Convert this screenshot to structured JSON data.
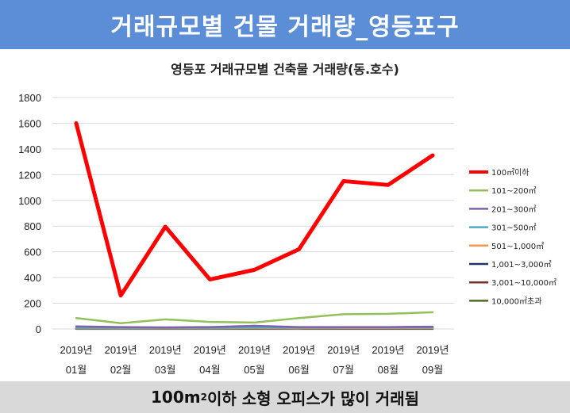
{
  "banner": {
    "title": "거래규모별 건물 거래량_영등포구"
  },
  "footer": {
    "prefix": "100m",
    "superscript": "2",
    "suffix": " 이하 소형 오피스가 많이 거래됨"
  },
  "chart_data": {
    "type": "line",
    "title": "영등포 거래규모별 건축물 거래량(동.호수)",
    "categories": [
      [
        "2019년",
        "01월"
      ],
      [
        "2019년",
        "02월"
      ],
      [
        "2019년",
        "03월"
      ],
      [
        "2019년",
        "04월"
      ],
      [
        "2019년",
        "05월"
      ],
      [
        "2019년",
        "06월"
      ],
      [
        "2019년",
        "07월"
      ],
      [
        "2019년",
        "08월"
      ],
      [
        "2019년",
        "09월"
      ]
    ],
    "ylim": [
      0,
      1800
    ],
    "yticks": [
      0,
      200,
      400,
      600,
      800,
      1000,
      1200,
      1400,
      1600,
      1800
    ],
    "grid": true,
    "legend_position": "right",
    "series": [
      {
        "name": "100㎡이하",
        "color": "#ff0000",
        "values": [
          1600,
          260,
          795,
          385,
          460,
          620,
          1150,
          1120,
          1350
        ]
      },
      {
        "name": "101~200㎡",
        "color": "#92c05a",
        "values": [
          85,
          45,
          75,
          55,
          50,
          85,
          115,
          118,
          130
        ]
      },
      {
        "name": "201~300㎡",
        "color": "#7f62a8",
        "values": [
          20,
          15,
          12,
          15,
          25,
          15,
          15,
          15,
          18
        ]
      },
      {
        "name": "301~500㎡",
        "color": "#4bacc6",
        "values": [
          8,
          7,
          8,
          8,
          10,
          9,
          10,
          10,
          10
        ]
      },
      {
        "name": "501~1,000㎡",
        "color": "#f79646",
        "values": [
          5,
          4,
          5,
          5,
          6,
          5,
          6,
          6,
          6
        ]
      },
      {
        "name": "1,001~3,000㎡",
        "color": "#1f3864",
        "values": [
          10,
          8,
          8,
          8,
          10,
          10,
          10,
          9,
          10
        ]
      },
      {
        "name": "3,001~10,000㎡",
        "color": "#7b2c2c",
        "values": [
          2,
          2,
          2,
          2,
          3,
          2,
          2,
          2,
          2
        ]
      },
      {
        "name": "10,000㎡초과",
        "color": "#4e6b2a",
        "values": [
          1,
          1,
          1,
          1,
          1,
          1,
          1,
          1,
          1
        ]
      }
    ]
  }
}
